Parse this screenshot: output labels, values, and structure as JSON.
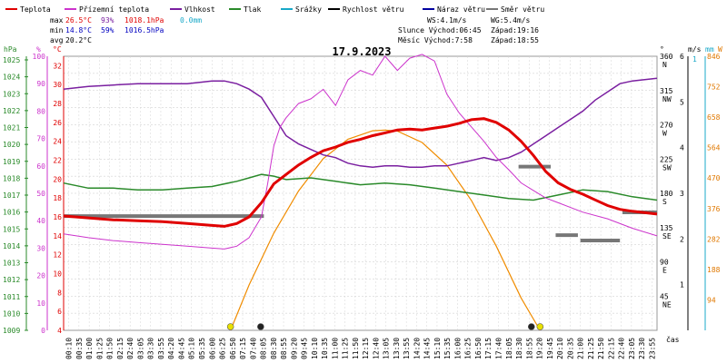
{
  "chart_data": {
    "type": "line",
    "title": "17.9.2023",
    "legend": [
      {
        "label": "Teplota",
        "color": "#e00000"
      },
      {
        "label": "Přízemní teplota",
        "color": "#cc33cc"
      },
      {
        "label": "Vlhkost",
        "color": "#7a1fa0"
      },
      {
        "label": "Tlak",
        "color": "#2a8a2a"
      },
      {
        "label": "Srážky",
        "color": "#18a8c8"
      },
      {
        "label": "Rychlost větru",
        "color": "#000000"
      },
      {
        "label": "Náraz větru",
        "color": "#0000a0"
      },
      {
        "label": "Směr větru",
        "color": "#777777"
      }
    ],
    "stats": {
      "max": {
        "label": "max",
        "temp": "26.5°C",
        "hum": "93%",
        "press": "1018.1hPa",
        "rain": "0.0mm"
      },
      "min": {
        "label": "min",
        "temp": "14.8°C",
        "hum": "59%",
        "press": "1016.5hPa"
      },
      "avg": {
        "label": "avg",
        "temp": "20.2°C"
      }
    },
    "info": {
      "ws": "WS:4.1m/s",
      "wg": "WG:5.4m/s",
      "sun_rise": "Slunce Východ:06:45",
      "sun_set": "Západ:19:16",
      "moon_rise": "Měsíc Východ:7:58",
      "moon_set": "Západ:18:55"
    },
    "axis_units": {
      "hpa": "hPa",
      "pct": "%",
      "degc": "°C",
      "deg": "°",
      "ms": "m/s",
      "mm": "mm",
      "w": "W",
      "time": "čas"
    },
    "hpa_ticks": [
      "1025",
      "1024",
      "1023",
      "1022",
      "1021",
      "1020",
      "1019",
      "1018",
      "1017",
      "1016",
      "1015",
      "1014",
      "1013",
      "1012",
      "1011",
      "1010",
      "1009"
    ],
    "pct_ticks": [
      "100",
      "90",
      "80",
      "70",
      "60",
      "50",
      "40",
      "30",
      "20",
      "10",
      "0"
    ],
    "degc_ticks": [
      "32",
      "30",
      "28",
      "26",
      "24",
      "22",
      "20",
      "18",
      "16",
      "14",
      "12",
      "10",
      "8",
      "6",
      "4"
    ],
    "dir_ticks": [
      {
        "deg": 360,
        "lbl": "N",
        "d": "360"
      },
      {
        "deg": 315,
        "lbl": "NW",
        "d": "315"
      },
      {
        "deg": 270,
        "lbl": "W",
        "d": "270"
      },
      {
        "deg": 225,
        "lbl": "SW",
        "d": "225"
      },
      {
        "deg": 180,
        "lbl": "S",
        "d": "180"
      },
      {
        "deg": 135,
        "lbl": "SE",
        "d": "135"
      },
      {
        "deg": 90,
        "lbl": "E",
        "d": "90"
      },
      {
        "deg": 45,
        "lbl": "NE",
        "d": "45"
      }
    ],
    "ms_ticks": [
      "6",
      "5",
      "4",
      "3",
      "2",
      "1"
    ],
    "w_ticks": [
      "846",
      "752",
      "658",
      "564",
      "470",
      "376",
      "282",
      "188",
      "94"
    ],
    "x_ticks": [
      "00:10",
      "00:35",
      "01:00",
      "01:25",
      "01:50",
      "02:15",
      "02:40",
      "03:05",
      "03:30",
      "03:55",
      "04:20",
      "04:45",
      "05:10",
      "05:35",
      "06:00",
      "06:25",
      "06:50",
      "07:15",
      "07:40",
      "08:05",
      "08:30",
      "08:55",
      "09:20",
      "09:45",
      "10:10",
      "10:35",
      "11:00",
      "11:25",
      "11:50",
      "12:15",
      "12:40",
      "13:05",
      "13:30",
      "13:55",
      "14:20",
      "14:45",
      "15:10",
      "15:35",
      "16:00",
      "16:25",
      "16:50",
      "17:15",
      "17:40",
      "18:05",
      "18:30",
      "18:55",
      "19:20",
      "19:45",
      "20:10",
      "20:35",
      "21:00",
      "21:25",
      "21:50",
      "22:15",
      "22:40",
      "23:05",
      "23:30",
      "23:55"
    ],
    "ylim_temp": [
      4,
      33
    ],
    "ylim_hum": [
      0,
      100
    ],
    "ylim_press": [
      1009,
      1025
    ],
    "ylim_wind": [
      0,
      6
    ],
    "ylim_dir": [
      0,
      360
    ],
    "ylim_solar": [
      0,
      846
    ],
    "xlim_hours": [
      0,
      24
    ],
    "series": {
      "temperature": {
        "x": [
          0,
          1,
          2,
          3,
          4,
          5,
          6,
          6.5,
          7,
          7.5,
          8,
          8.5,
          9,
          9.5,
          10,
          10.5,
          11,
          11.5,
          12,
          12.5,
          13,
          13.5,
          14,
          14.5,
          15,
          15.5,
          16,
          16.5,
          17,
          17.5,
          18,
          18.5,
          19,
          19.5,
          20,
          20.5,
          21,
          21.5,
          22,
          22.5,
          23,
          24
        ],
        "y": [
          16.1,
          15.9,
          15.7,
          15.6,
          15.5,
          15.3,
          15.1,
          15.0,
          15.3,
          16.0,
          17.5,
          19.5,
          20.5,
          21.5,
          22.3,
          23.0,
          23.4,
          23.9,
          24.2,
          24.6,
          24.9,
          25.2,
          25.3,
          25.2,
          25.4,
          25.6,
          25.9,
          26.3,
          26.4,
          26.0,
          25.2,
          24.0,
          22.5,
          20.8,
          19.6,
          18.9,
          18.4,
          17.8,
          17.2,
          16.8,
          16.6,
          16.3
        ]
      },
      "ground_temperature": {
        "x": [
          0,
          1,
          2,
          3,
          4,
          5,
          6,
          6.5,
          7,
          7.5,
          8,
          8.25,
          8.5,
          8.75,
          9,
          9.5,
          10,
          10.5,
          11,
          11.5,
          12,
          12.5,
          13,
          13.5,
          14,
          14.5,
          15,
          15.5,
          16,
          16.5,
          17,
          17.5,
          18,
          18.5,
          19,
          19.5,
          20,
          21,
          22,
          23,
          24
        ],
        "y": [
          14.2,
          13.8,
          13.5,
          13.3,
          13.1,
          12.9,
          12.7,
          12.6,
          12.9,
          13.8,
          16.0,
          19.5,
          23.5,
          25.5,
          26.5,
          28.0,
          28.5,
          29.5,
          27.8,
          30.5,
          31.5,
          31.0,
          33.0,
          31.5,
          32.8,
          33.2,
          32.5,
          29.0,
          27.0,
          25.5,
          24.0,
          22.3,
          21.0,
          19.6,
          18.8,
          18.0,
          17.5,
          16.5,
          15.8,
          14.8,
          14.0
        ]
      },
      "humidity": {
        "x": [
          0,
          1,
          2,
          3,
          4,
          5,
          6,
          6.5,
          7,
          7.5,
          8,
          8.5,
          9,
          9.5,
          10,
          10.5,
          11,
          11.5,
          12,
          12.5,
          13,
          13.5,
          14,
          14.5,
          15,
          15.5,
          16,
          16.5,
          17,
          17.5,
          18,
          18.5,
          19,
          19.5,
          20,
          20.5,
          21,
          21.5,
          22,
          22.5,
          23,
          24
        ],
        "y": [
          88,
          89,
          89.5,
          90,
          90,
          90,
          91,
          91,
          90,
          88,
          85,
          78,
          71,
          68,
          66,
          64,
          63,
          61,
          60,
          59.5,
          60,
          60,
          59.5,
          59.5,
          60,
          60,
          61,
          62,
          63,
          62,
          63,
          65,
          68,
          71,
          74,
          77,
          80,
          84,
          87,
          90,
          91,
          92
        ]
      },
      "pressure": {
        "x": [
          0,
          1,
          2,
          3,
          4,
          5,
          6,
          7,
          7.5,
          8,
          8.5,
          9,
          10,
          11,
          12,
          13,
          14,
          15,
          16,
          17,
          18,
          19,
          20,
          21,
          22,
          23,
          24
        ],
        "y": [
          1017.6,
          1017.3,
          1017.3,
          1017.2,
          1017.2,
          1017.3,
          1017.4,
          1017.7,
          1017.9,
          1018.1,
          1018.0,
          1017.8,
          1017.9,
          1017.7,
          1017.5,
          1017.6,
          1017.5,
          1017.3,
          1017.1,
          1016.9,
          1016.7,
          1016.6,
          1016.9,
          1017.2,
          1017.1,
          1016.8,
          1016.6
        ]
      },
      "sun_height": {
        "x": [
          6.75,
          7.5,
          8.5,
          9.5,
          10.5,
          11.5,
          12.5,
          13.0,
          13.5,
          14.5,
          15.5,
          16.5,
          17.5,
          18.5,
          19.27
        ],
        "y": [
          0,
          140,
          300,
          430,
          530,
          590,
          616,
          618,
          615,
          580,
          510,
          400,
          260,
          100,
          0
        ]
      },
      "wind_dir_bars": [
        {
          "x0": 0.0,
          "x1": 8.1,
          "deg": 150
        },
        {
          "x0": 18.4,
          "x1": 19.7,
          "deg": 215
        },
        {
          "x0": 19.9,
          "x1": 20.8,
          "deg": 125
        },
        {
          "x0": 20.9,
          "x1": 22.5,
          "deg": 118
        },
        {
          "x0": 22.6,
          "x1": 24.0,
          "deg": 155
        }
      ],
      "markers": [
        {
          "x": 6.75,
          "color": "#e8e000",
          "label": "sun rise"
        },
        {
          "x": 7.97,
          "color": "#222222",
          "label": "moon rise"
        },
        {
          "x": 18.92,
          "color": "#222222",
          "label": "moon set"
        },
        {
          "x": 19.27,
          "color": "#e8e000",
          "label": "sun set"
        }
      ]
    }
  }
}
